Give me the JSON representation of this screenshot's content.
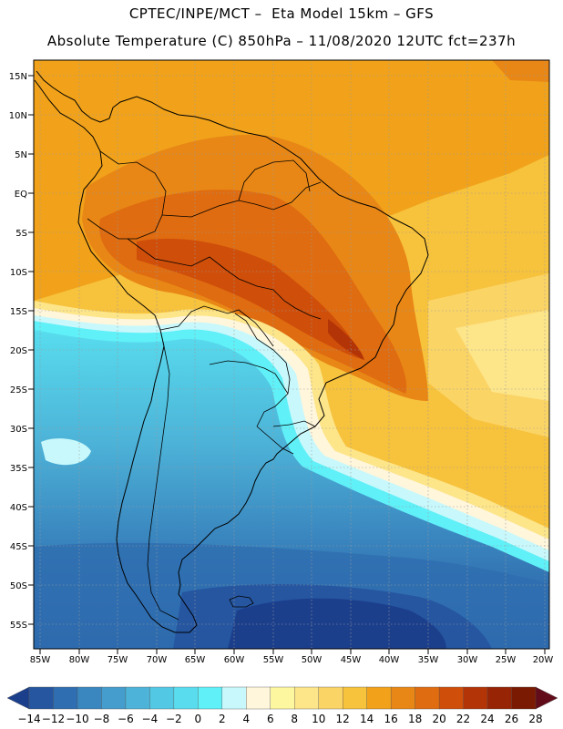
{
  "header": {
    "line1": "CPTEC/INPE/MCT –  Eta Model 15km – GFS",
    "line2": "Absolute Temperature (C) 850hPa – 11/08/2020 12UTC fct=237h"
  },
  "map": {
    "lat_labels": [
      "15N",
      "10N",
      "5N",
      "EQ",
      "5S",
      "10S",
      "15S",
      "20S",
      "25S",
      "30S",
      "35S",
      "40S",
      "45S",
      "50S",
      "55S"
    ],
    "lon_labels": [
      "85W",
      "80W",
      "75W",
      "70W",
      "65W",
      "60W",
      "55W",
      "50W",
      "45W",
      "40W",
      "35W",
      "30W",
      "25W",
      "20W"
    ]
  },
  "colorbar": {
    "colors": [
      "#1c3f8c",
      "#2656a0",
      "#2f6eb0",
      "#3a86bf",
      "#449dcc",
      "#4db3d8",
      "#53c8e4",
      "#58dcee",
      "#60f0f8",
      "#c8f8fb",
      "#fff6dc",
      "#fdf7a0",
      "#fde58a",
      "#fbd466",
      "#f7c23c",
      "#f1a21a",
      "#e88716",
      "#df6c10",
      "#cf4e0a",
      "#b33406",
      "#972404",
      "#7b1a02",
      "#620c1a"
    ],
    "labels": [
      "-14",
      "-12",
      "-10",
      "-8",
      "-6",
      "-4",
      "-2",
      "0",
      "2",
      "4",
      "6",
      "8",
      "10",
      "12",
      "14",
      "16",
      "18",
      "20",
      "22",
      "24",
      "26",
      "28"
    ]
  }
}
